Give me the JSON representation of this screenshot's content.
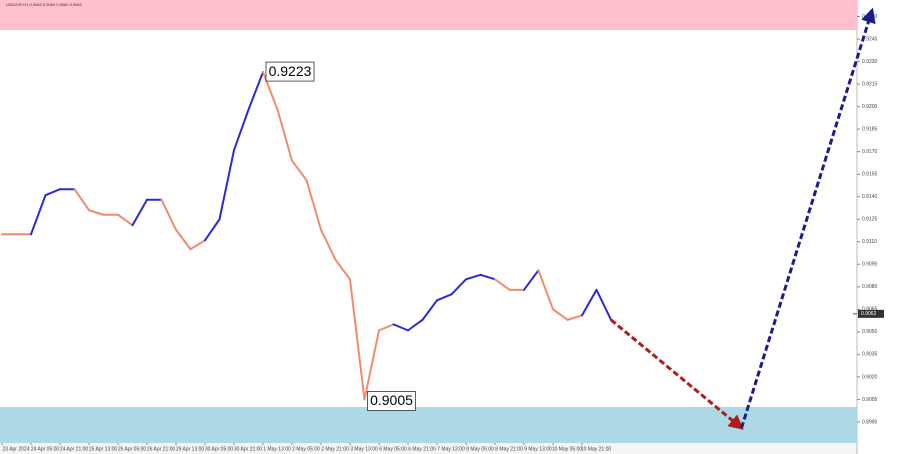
{
  "chart_data": {
    "type": "line",
    "title": "USDCHF,H1 0.9062 0.9064 0.9060 0.9062",
    "categories": [
      "23 Apr 2024",
      null,
      "24 Apr 05:00",
      null,
      "24 Apr 21:00",
      null,
      "25 Apr 13:00",
      null,
      "26 Apr 05:00",
      null,
      "26 Apr 21:00",
      null,
      "29 Apr 13:00",
      null,
      "30 Apr 05:00",
      null,
      "30 Apr 21:00",
      null,
      "1 May 13:00",
      null,
      "2 May 05:00",
      null,
      "2 May 21:00",
      null,
      "3 May 13:00",
      null,
      "6 May 05:00",
      null,
      "6 May 21:00",
      null,
      "7 May 13:00",
      null,
      "8 May 05:00",
      null,
      "8 May 21:00",
      null,
      "9 May 13:00",
      null,
      "10 May 05:00",
      null,
      "10 May 21:00",
      null,
      null
    ],
    "values": [
      0.9115,
      0.9115,
      0.9115,
      0.9141,
      0.9145,
      0.9145,
      0.9131,
      0.9128,
      0.9128,
      0.9121,
      0.9138,
      0.9138,
      0.9118,
      0.9105,
      0.9111,
      0.9125,
      0.9171,
      0.9198,
      0.9223,
      0.9198,
      0.9164,
      0.9151,
      0.9118,
      0.9098,
      0.9085,
      0.9005,
      0.9051,
      0.9055,
      0.9051,
      0.9058,
      0.9071,
      0.9075,
      0.9085,
      0.9088,
      0.9085,
      0.9078,
      0.9078,
      0.9091,
      0.9065,
      0.9058,
      0.9061,
      0.9078,
      0.9058
    ],
    "segment_colors": [
      "#f28b6e",
      "#f28b6e",
      "#2b2bd6",
      "#2b2bd6",
      "#2b2bd6",
      "#f28b6e",
      "#f28b6e",
      "#f28b6e",
      "#f28b6e",
      "#2b2bd6",
      "#2b2bd6",
      "#f28b6e",
      "#f28b6e",
      "#f28b6e",
      "#2b2bd6",
      "#2b2bd6",
      "#2b2bd6",
      "#2b2bd6",
      "#f28b6e",
      "#f28b6e",
      "#f28b6e",
      "#f28b6e",
      "#f28b6e",
      "#f28b6e",
      "#f28b6e",
      "#f28b6e",
      "#f28b6e",
      "#2b2bd6",
      "#2b2bd6",
      "#2b2bd6",
      "#2b2bd6",
      "#2b2bd6",
      "#2b2bd6",
      "#2b2bd6",
      "#f28b6e",
      "#f28b6e",
      "#2b2bd6",
      "#f28b6e",
      "#f28b6e",
      "#f28b6e",
      "#2b2bd6",
      "#2b2bd6"
    ],
    "annotations": [
      {
        "x": 18,
        "value": 0.9223
      },
      {
        "x": 25,
        "value": 0.9005
      }
    ],
    "zones": [
      {
        "from": 0.9251,
        "to": 0.9271,
        "color": "#ffc0cb"
      },
      {
        "from": 0.8976,
        "to": 0.9,
        "color": "#add8e6"
      }
    ],
    "forecast": {
      "points": [
        {
          "x": 42,
          "value": 0.9058
        },
        {
          "x": 51,
          "value": 0.8986
        },
        {
          "x": 60,
          "value": 0.9264
        }
      ],
      "colors": [
        "#b01c1c",
        "#1c1c8c"
      ]
    },
    "last_price": 0.9062,
    "ylim": [
      0.8976,
      0.9271
    ],
    "yticks": [
      {
        "value": 0.899,
        "label": "0.8990"
      },
      0.9005,
      {
        "value": 0.902,
        "label": "0.9020"
      },
      0.9035,
      {
        "value": 0.905,
        "label": "0.9050"
      },
      0.9065,
      {
        "value": 0.908,
        "label": "0.9080"
      },
      0.9095,
      {
        "value": 0.911,
        "label": "0.9110"
      },
      0.9125,
      {
        "value": 0.914,
        "label": "0.9140"
      },
      0.9155,
      {
        "value": 0.917,
        "label": "0.9170"
      },
      0.9185,
      {
        "value": 0.92,
        "label": "0.9200"
      },
      0.9215,
      {
        "value": 0.923,
        "label": "0.9230"
      },
      0.9245,
      {
        "value": 0.926,
        "label": "0.9260"
      }
    ]
  }
}
